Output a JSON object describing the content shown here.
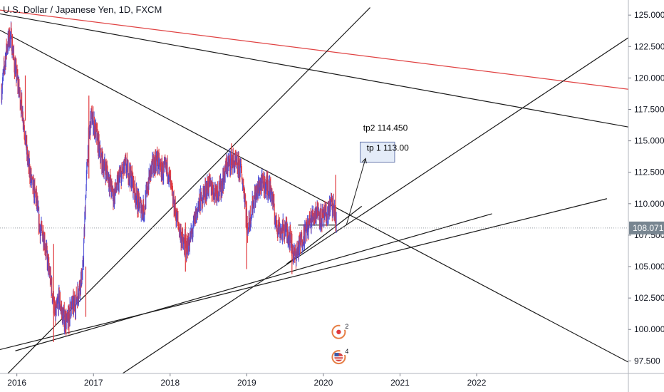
{
  "chart_data": {
    "type": "candlestick",
    "title": "U.S. Dollar / Japanese Yen, 1D, FXCM",
    "x_ticks": [
      "2016",
      "2017",
      "2018",
      "2019",
      "2020",
      "2021",
      "2022"
    ],
    "y_ticks": [
      "125.000",
      "122.500",
      "120.000",
      "117.500",
      "115.000",
      "112.500",
      "110.000",
      "107.500",
      "105.000",
      "102.500",
      "100.000",
      "97.500"
    ],
    "ylim": [
      96.5,
      126.2
    ],
    "xlim": [
      2015.78,
      2023.98
    ],
    "current_price": "108.071",
    "colors": {
      "up": "#4a4ad6",
      "down": "#e0393e",
      "red_line": "#e04343",
      "trend": "#1a1a1a",
      "price_label": "#788691",
      "box_fill": "#e4ecf8",
      "box_stroke": "#6a7bad"
    },
    "price_path": [
      [
        2015.8,
        119.0
      ],
      [
        2015.87,
        122.5
      ],
      [
        2015.92,
        123.5
      ],
      [
        2015.97,
        121.0
      ],
      [
        2016.03,
        119.0
      ],
      [
        2016.09,
        116.5
      ],
      [
        2016.14,
        113.5
      ],
      [
        2016.2,
        111.5
      ],
      [
        2016.25,
        110.5
      ],
      [
        2016.3,
        108.0
      ],
      [
        2016.35,
        107.5
      ],
      [
        2016.4,
        105.5
      ],
      [
        2016.45,
        103.5
      ],
      [
        2016.5,
        101.0
      ],
      [
        2016.55,
        102.5
      ],
      [
        2016.6,
        101.0
      ],
      [
        2016.66,
        100.5
      ],
      [
        2016.7,
        101.8
      ],
      [
        2016.76,
        102.0
      ],
      [
        2016.82,
        103.5
      ],
      [
        2016.86,
        104.5
      ],
      [
        2016.9,
        111.0
      ],
      [
        2016.93,
        114.5
      ],
      [
        2016.97,
        117.0
      ],
      [
        2017.02,
        116.0
      ],
      [
        2017.1,
        113.5
      ],
      [
        2017.18,
        112.5
      ],
      [
        2017.26,
        110.5
      ],
      [
        2017.34,
        112.0
      ],
      [
        2017.42,
        113.0
      ],
      [
        2017.5,
        112.0
      ],
      [
        2017.58,
        110.0
      ],
      [
        2017.66,
        109.5
      ],
      [
        2017.74,
        112.5
      ],
      [
        2017.82,
        113.5
      ],
      [
        2017.9,
        112.5
      ],
      [
        2017.97,
        112.8
      ],
      [
        2018.03,
        110.5
      ],
      [
        2018.1,
        108.5
      ],
      [
        2018.17,
        106.8
      ],
      [
        2018.22,
        106.5
      ],
      [
        2018.28,
        107.5
      ],
      [
        2018.35,
        109.5
      ],
      [
        2018.42,
        110.5
      ],
      [
        2018.5,
        111.5
      ],
      [
        2018.58,
        111.0
      ],
      [
        2018.66,
        111.2
      ],
      [
        2018.74,
        113.0
      ],
      [
        2018.8,
        113.5
      ],
      [
        2018.86,
        113.0
      ],
      [
        2018.92,
        112.8
      ],
      [
        2018.98,
        110.5
      ],
      [
        2019.0,
        107.8
      ],
      [
        2019.04,
        108.8
      ],
      [
        2019.1,
        110.5
      ],
      [
        2019.18,
        111.5
      ],
      [
        2019.25,
        111.5
      ],
      [
        2019.32,
        111.0
      ],
      [
        2019.38,
        108.5
      ],
      [
        2019.45,
        107.8
      ],
      [
        2019.5,
        108.0
      ],
      [
        2019.56,
        107.5
      ],
      [
        2019.62,
        105.8
      ],
      [
        2019.68,
        106.5
      ],
      [
        2019.74,
        107.5
      ],
      [
        2019.8,
        108.2
      ],
      [
        2019.86,
        109.0
      ],
      [
        2019.92,
        109.5
      ],
      [
        2019.98,
        108.8
      ],
      [
        2020.04,
        109.0
      ],
      [
        2020.1,
        110.0
      ],
      [
        2020.14,
        109.5
      ],
      [
        2020.17,
        108.071
      ]
    ],
    "spikes": [
      [
        2016.11,
        120.2,
        116.6
      ],
      [
        2016.48,
        106.8,
        99.0
      ],
      [
        2016.68,
        102.0,
        99.6
      ],
      [
        2016.9,
        105.0,
        101.0
      ],
      [
        2016.94,
        118.6,
        112.0
      ],
      [
        2018.2,
        108.5,
        104.6
      ],
      [
        2018.8,
        114.8,
        112.3
      ],
      [
        2019.0,
        110.2,
        104.8
      ],
      [
        2019.59,
        107.6,
        104.4
      ],
      [
        2020.16,
        112.3,
        107.8
      ]
    ],
    "lines": [
      {
        "id": "red-resistance",
        "color": "#e04343",
        "points": [
          [
            2015.78,
            125.4
          ],
          [
            2023.98,
            119.1
          ]
        ]
      },
      {
        "id": "upper-trend",
        "color": "#1a1a1a",
        "points": [
          [
            2015.78,
            125.1
          ],
          [
            2023.98,
            116.1
          ]
        ]
      },
      {
        "id": "descending-trend",
        "color": "#1a1a1a",
        "points": [
          [
            2015.78,
            123.8
          ],
          [
            2023.98,
            97.4
          ]
        ]
      },
      {
        "id": "steep-rising-trend",
        "color": "#1a1a1a",
        "points": [
          [
            2015.85,
            96.3
          ],
          [
            2020.61,
            125.6
          ]
        ]
      },
      {
        "id": "rising-channel-trend",
        "color": "#1a1a1a",
        "points": [
          [
            2017.38,
            96.5
          ],
          [
            2023.98,
            123.2
          ]
        ]
      },
      {
        "id": "long-support-a",
        "color": "#1a1a1a",
        "points": [
          [
            2015.78,
            98.4
          ],
          [
            2023.7,
            110.4
          ]
        ]
      },
      {
        "id": "long-support-b",
        "color": "#1a1a1a",
        "points": [
          [
            2015.98,
            98.3
          ],
          [
            2022.2,
            109.2
          ]
        ]
      },
      {
        "id": "wedge-support",
        "color": "#1a1a1a",
        "points": [
          [
            2019.52,
            105.2
          ],
          [
            2020.5,
            109.8
          ]
        ]
      },
      {
        "id": "horizontal-level",
        "color": "#1a1a1a",
        "points": [
          [
            2019.67,
            108.3
          ],
          [
            2020.17,
            108.3
          ]
        ]
      }
    ],
    "target_arrow": {
      "from": [
        2020.3,
        108.3
      ],
      "to": [
        2020.55,
        113.6
      ]
    },
    "target_box": {
      "x": [
        2020.48,
        2020.93
      ],
      "y": [
        113.3,
        114.9
      ]
    },
    "annotations": [
      {
        "text": "tp2 114.450",
        "x": 2020.81,
        "y": 115.8
      },
      {
        "text": "tp 1 113.00",
        "x": 2020.84,
        "y": 114.2
      }
    ],
    "events": [
      {
        "icon": "economic-event-icon",
        "count": "2",
        "x": 2020.2,
        "y": 99.8
      },
      {
        "icon": "us-flag-icon",
        "count": "4",
        "x": 2020.2,
        "y": 97.8
      }
    ]
  }
}
